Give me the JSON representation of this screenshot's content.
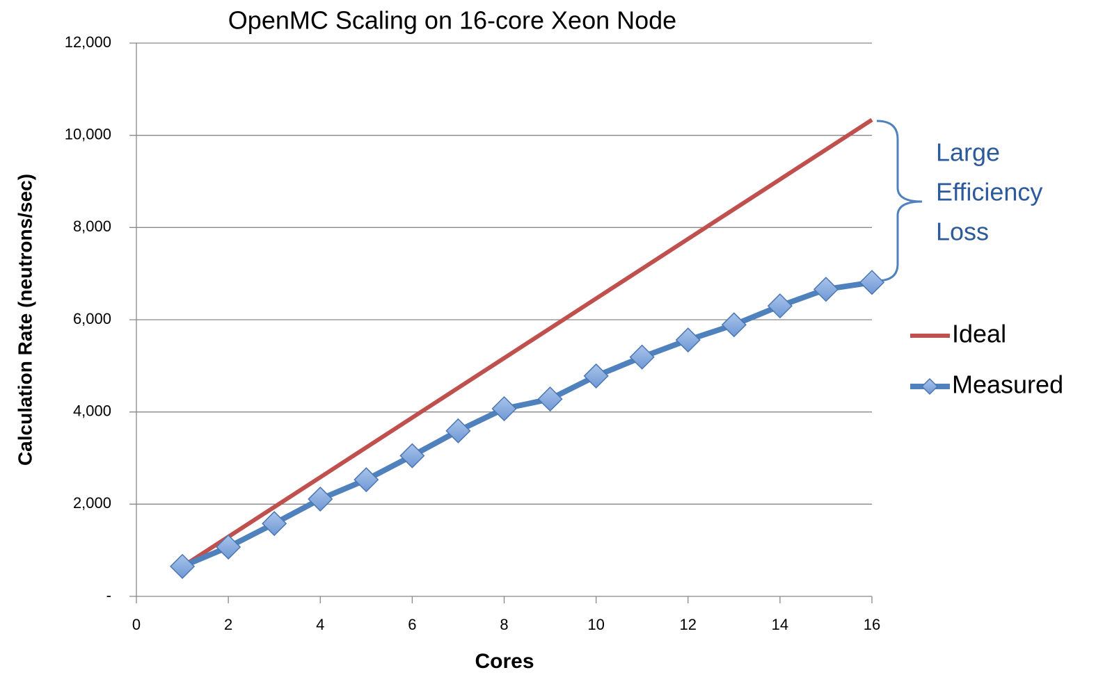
{
  "chart_data": {
    "type": "line",
    "title": "OpenMC Scaling on 16-core Xeon Node",
    "x_label": "Cores",
    "y_label": "Calculation Rate (neutrons/sec)",
    "annotation": [
      "Large",
      "Efficiency",
      "Loss"
    ],
    "x": [
      1,
      2,
      3,
      4,
      5,
      6,
      7,
      8,
      9,
      10,
      11,
      12,
      13,
      14,
      15,
      16
    ],
    "series": [
      {
        "name": "Ideal",
        "color": "#c0504d",
        "values": [
          646,
          1292,
          1938,
          2584,
          3230,
          3876,
          4522,
          5168,
          5814,
          6460,
          7106,
          7752,
          8398,
          9044,
          9690,
          10336
        ]
      },
      {
        "name": "Measured",
        "color": "#4f81bd",
        "marker": "diamond",
        "values": [
          650,
          1070,
          1580,
          2110,
          2530,
          3050,
          3590,
          4070,
          4280,
          4780,
          5190,
          5560,
          5890,
          6300,
          6660,
          6810
        ]
      }
    ],
    "xlim": [
      0,
      16
    ],
    "xticks": [
      0,
      2,
      4,
      6,
      8,
      10,
      12,
      14,
      16
    ],
    "ylim": [
      0,
      12000
    ],
    "yticks": [
      {
        "value": 0,
        "label": "-"
      },
      {
        "value": 2000,
        "label": "2,000"
      },
      {
        "value": 4000,
        "label": "4,000"
      },
      {
        "value": 6000,
        "label": "6,000"
      },
      {
        "value": 8000,
        "label": "8,000"
      },
      {
        "value": 10000,
        "label": "10,000"
      },
      {
        "value": 12000,
        "label": "12,000"
      }
    ],
    "grid": true,
    "legend": "right"
  }
}
